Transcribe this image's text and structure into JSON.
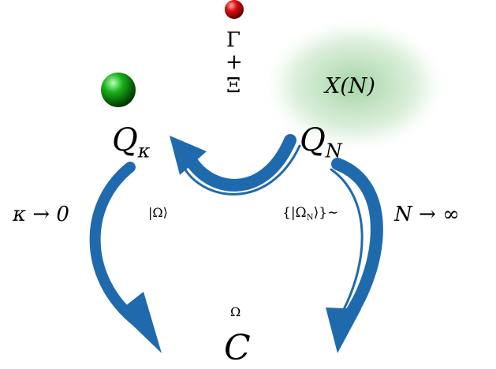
{
  "labels": {
    "gamma": "Γ",
    "plus": "+",
    "xi": "Ξ",
    "cloud": "X(N)",
    "kappa_limit": "κ → 0",
    "ket": "|Ω⟩",
    "ket_set": "{|Ω",
    "ket_set_sub": "N",
    "ket_set_end": "⟩}∼",
    "n_limit": "N → ∞",
    "omega": "Ω"
  },
  "nodes": [
    {
      "label": "Q",
      "subscript": "κ"
    },
    {
      "label": "Q",
      "subscript": "N"
    },
    {
      "label": "C"
    }
  ]
}
